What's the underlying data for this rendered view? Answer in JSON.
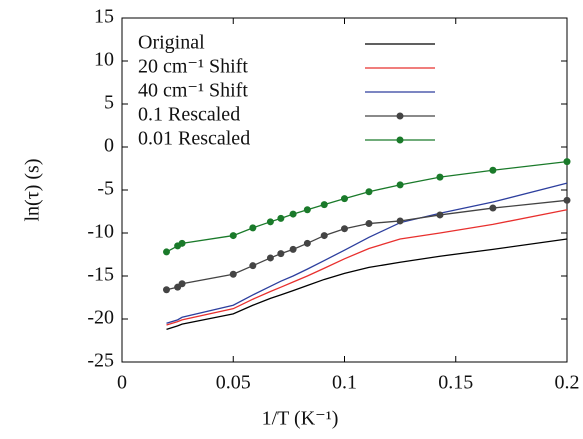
{
  "chart_data": {
    "type": "line",
    "x_label": "1/T (K⁻¹)",
    "y_label": "ln(τ) (s)",
    "x": [
      0.02,
      0.025,
      0.027,
      0.05,
      0.0588,
      0.0667,
      0.0714,
      0.0769,
      0.0833,
      0.0909,
      0.1,
      0.111,
      0.125,
      0.1429,
      0.1667,
      0.2
    ],
    "series": [
      {
        "name": "Original",
        "color": "#000000",
        "marker": false,
        "values": [
          -21.2,
          -20.8,
          -20.6,
          -19.4,
          -18.4,
          -17.6,
          -17.2,
          -16.7,
          -16.1,
          -15.4,
          -14.7,
          -14.0,
          -13.4,
          -12.7,
          -11.9,
          -10.7
        ]
      },
      {
        "name": "20 cm⁻¹ Shift",
        "color": "#e8302e",
        "marker": false,
        "values": [
          -20.7,
          -20.3,
          -20.1,
          -18.8,
          -17.7,
          -16.8,
          -16.3,
          -15.7,
          -15.0,
          -14.1,
          -13.0,
          -11.8,
          -10.7,
          -10.0,
          -9.0,
          -7.3
        ]
      },
      {
        "name": "40 cm⁻¹ Shift",
        "color": "#2d3f9e",
        "marker": false,
        "values": [
          -20.5,
          -20.1,
          -19.8,
          -18.4,
          -17.2,
          -16.2,
          -15.6,
          -15.0,
          -14.2,
          -13.2,
          -12.0,
          -10.5,
          -8.8,
          -7.7,
          -6.4,
          -4.2
        ]
      },
      {
        "name": "0.1 Rescaled",
        "color": "#444444",
        "marker": true,
        "values": [
          -16.6,
          -16.3,
          -15.9,
          -14.8,
          -13.8,
          -12.9,
          -12.4,
          -11.9,
          -11.2,
          -10.3,
          -9.5,
          -8.9,
          -8.6,
          -7.9,
          -7.1,
          -6.2
        ]
      },
      {
        "name": "0.01 Rescaled",
        "color": "#1a7a2a",
        "marker": true,
        "values": [
          -12.2,
          -11.5,
          -11.2,
          -10.3,
          -9.4,
          -8.7,
          -8.3,
          -7.8,
          -7.3,
          -6.7,
          -6.0,
          -5.2,
          -4.4,
          -3.5,
          -2.7,
          -1.7
        ]
      }
    ],
    "xlim": [
      0,
      0.2
    ],
    "ylim": [
      -25,
      15
    ],
    "xticks": [
      0,
      0.05,
      0.1,
      0.15,
      0.2
    ],
    "yticks": [
      -25,
      -20,
      -15,
      -10,
      -5,
      0,
      5,
      10,
      15
    ],
    "legend": "upper left"
  }
}
